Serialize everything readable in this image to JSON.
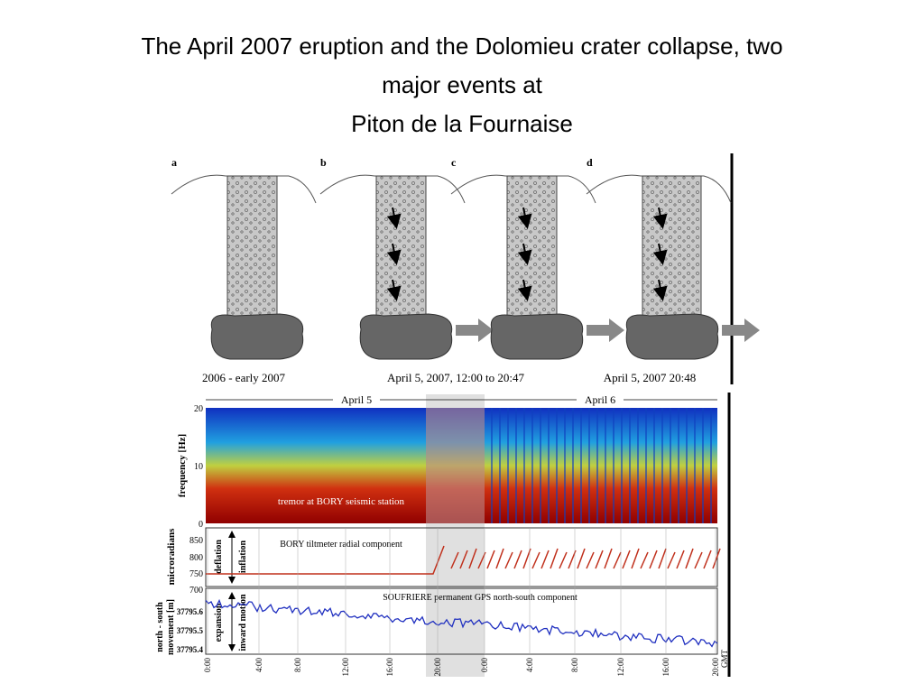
{
  "title": {
    "lines": [
      "The April 2007 eruption and the Dolomieu crater collapse, two",
      "major events at",
      "Piton de la Fournaise"
    ]
  },
  "sketches": {
    "panels": [
      "a",
      "b",
      "c",
      "d"
    ],
    "captions": [
      "2006 - early 2007",
      "April 5, 2007, 12:00 to 20:47",
      "April 5, 2007 20:48"
    ]
  },
  "plots": {
    "days": [
      "April 5",
      "April 6"
    ],
    "spectrogram": {
      "ylabel": "frequency [Hz]",
      "yticks": [
        "20",
        "10",
        "0"
      ],
      "note": "tremor at BORY seismic station"
    },
    "tilt": {
      "ylabel": "microradians",
      "yticks": [
        "850",
        "800",
        "750",
        "700"
      ],
      "arrows": [
        "deflation",
        "inflation"
      ],
      "note": "BORY tiltmeter radial component"
    },
    "gps": {
      "ylabel": [
        "north - south",
        "movement [m]"
      ],
      "yticks": [
        "37795.6",
        "37795.5",
        "37795.4"
      ],
      "arrows": [
        "expansion",
        "inward motion"
      ],
      "note": "SOUFRIERE permanent GPS north-south component"
    },
    "xticks": [
      "0:00",
      "4:00",
      "8:00",
      "12:00",
      "16:00",
      "20:00",
      "0:00",
      "4:00",
      "8:00",
      "12:00",
      "16:00",
      "20:00"
    ],
    "xunit": "GMT"
  }
}
